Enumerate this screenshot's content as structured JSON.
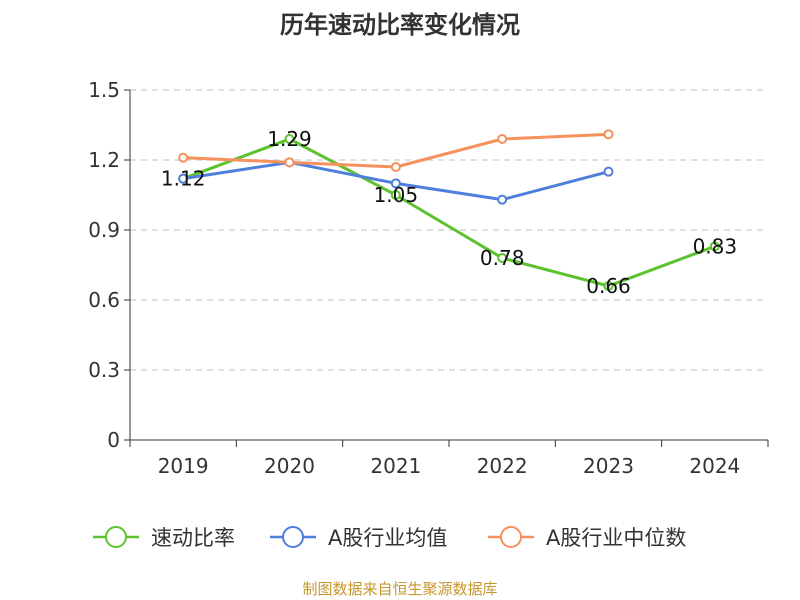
{
  "chart_data": {
    "type": "line",
    "title": "历年速动比率变化情况",
    "categories": [
      "2019",
      "2020",
      "2021",
      "2022",
      "2023",
      "2024"
    ],
    "ylim": [
      0,
      1.5
    ],
    "yticks": [
      "0",
      "0.3",
      "0.6",
      "0.9",
      "1.2",
      "1.5"
    ],
    "grid": true,
    "legend_position": "bottom",
    "series": [
      {
        "name": "速动比率",
        "values": [
          1.12,
          1.29,
          1.05,
          0.78,
          0.66,
          0.83
        ],
        "color": "#5cc22d",
        "labels": [
          "1.12",
          "1.29",
          "1.05",
          "0.78",
          "0.66",
          "0.83"
        ]
      },
      {
        "name": "A股行业均值",
        "values": [
          1.12,
          1.19,
          1.1,
          1.03,
          1.15,
          null
        ],
        "color": "#4f7fdc"
      },
      {
        "name": "A股行业中位数",
        "values": [
          1.21,
          1.19,
          1.17,
          1.29,
          1.31,
          null
        ],
        "color": "#f5915c"
      }
    ]
  },
  "footer": {
    "source": "制图数据来自恒生聚源数据库",
    "color": "#c8962e"
  }
}
